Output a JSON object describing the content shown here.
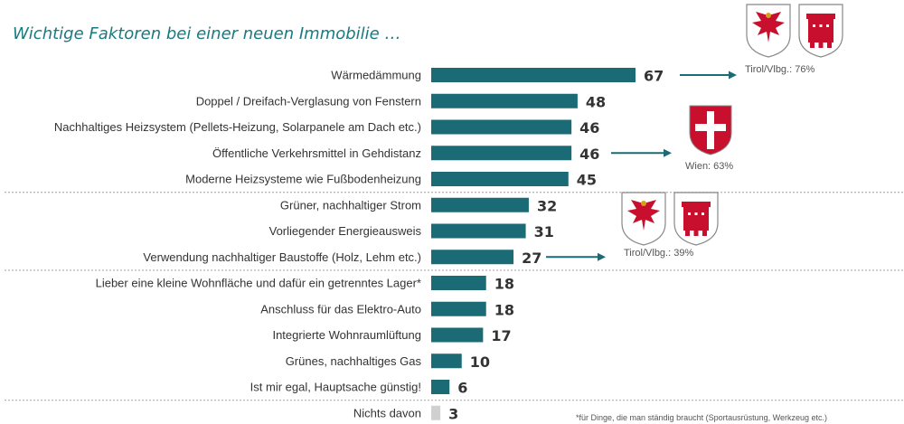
{
  "title": "Wichtige Faktoren bei einer neuen Immobilie …",
  "footnote": "*für Dinge, die man ständig braucht (Sportausrüstung, Werkzeug etc.)",
  "colors": {
    "bar": "#1a6b75",
    "bar_muted": "#d0d0d0",
    "label": "#333333",
    "value": "#333333",
    "divider": "#a0a0a0",
    "arrow": "#1a6b75",
    "title": "#1a7a80",
    "crest_red": "#c8102e"
  },
  "callouts": [
    {
      "text": "Tirol/Vlbg.: 76%",
      "row": 0,
      "crests": [
        "tirol-crest-icon",
        "vorarlberg-crest-icon"
      ]
    },
    {
      "text": "Wien: 63%",
      "row": 3,
      "crests": [
        "wien-crest-icon"
      ]
    },
    {
      "text": "Tirol/Vlbg.: 39%",
      "row": 7,
      "crests": [
        "tirol-crest-icon",
        "vorarlberg-crest-icon"
      ]
    }
  ],
  "chart_data": {
    "type": "bar",
    "orientation": "horizontal",
    "title": "Wichtige Faktoren bei einer neuen Immobilie …",
    "categories": [
      "Wärmedämmung",
      "Doppel / Dreifach-Verglasung von Fenstern",
      "Nachhaltiges Heizsystem (Pellets-Heizung, Solarpanele am Dach etc.)",
      "Öffentliche Verkehrsmittel in Gehdistanz",
      "Moderne Heizsysteme wie Fußbodenheizung",
      "Grüner, nachhaltiger Strom",
      "Vorliegender Energieausweis",
      "Verwendung nachhaltiger Baustoffe (Holz, Lehm etc.)",
      "Lieber eine kleine Wohnfläche und dafür ein getrenntes Lager*",
      "Anschluss für das Elektro-Auto",
      "Integrierte Wohnraumlüftung",
      "Grünes, nachhaltiges Gas",
      "Ist mir egal, Hauptsache günstig!",
      "Nichts davon"
    ],
    "values": [
      67,
      48,
      46,
      46,
      45,
      32,
      31,
      27,
      18,
      18,
      17,
      10,
      6,
      3
    ],
    "value_labels": [
      "67",
      "48",
      "46",
      "46",
      "45",
      "32",
      "31",
      "27",
      "18",
      "18",
      "17",
      "10",
      "6",
      "3"
    ],
    "muted_categories": [
      "Nichts davon"
    ],
    "group_dividers_after_index": [
      4,
      7,
      12
    ],
    "xlim": [
      0,
      100
    ],
    "xlabel": "",
    "ylabel": "",
    "grid": false,
    "legend": "none"
  }
}
